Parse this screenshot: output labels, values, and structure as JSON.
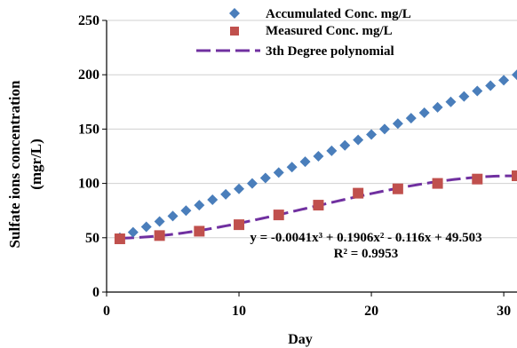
{
  "chart_data": {
    "type": "scatter",
    "xlabel": "Day",
    "ylabel_line1": "Sulfate ions concentration",
    "ylabel_line2": "(mgr/L)",
    "xlim": [
      0,
      31
    ],
    "ylim": [
      0,
      250
    ],
    "x_ticks": [
      0,
      10,
      20,
      30
    ],
    "y_ticks": [
      0,
      50,
      100,
      150,
      200,
      250
    ],
    "legend_position": "top",
    "series": [
      {
        "name": "Accumulated Conc. mg/L",
        "marker": "diamond",
        "color": "#4a7ebb",
        "x": [
          1,
          2,
          3,
          4,
          5,
          6,
          7,
          8,
          9,
          10,
          11,
          12,
          13,
          14,
          15,
          16,
          17,
          18,
          19,
          20,
          21,
          22,
          23,
          24,
          25,
          26,
          27,
          28,
          29,
          30,
          31
        ],
        "y": [
          50,
          55,
          60,
          65,
          70,
          75,
          80,
          85,
          90,
          95,
          100,
          105,
          110,
          115,
          120,
          125,
          130,
          135,
          140,
          145,
          150,
          155,
          160,
          165,
          170,
          175,
          180,
          185,
          190,
          195,
          200
        ]
      },
      {
        "name": "Measured Conc. mg/L",
        "marker": "square",
        "color": "#c0504d",
        "x": [
          1,
          4,
          7,
          10,
          13,
          16,
          19,
          22,
          25,
          28,
          31
        ],
        "y": [
          49,
          52,
          56,
          62,
          71,
          80,
          91,
          95,
          100,
          104,
          107
        ]
      },
      {
        "name": "3th Degree polynomial",
        "marker": "dashed-line",
        "color": "#7030a0",
        "coefficients": [
          -0.0041,
          0.1906,
          -0.116,
          49.503
        ]
      }
    ],
    "equation": "y = -0.0041x³ + 0.1906x² - 0.116x + 49.503",
    "r_squared": "R² = 0.9953"
  }
}
